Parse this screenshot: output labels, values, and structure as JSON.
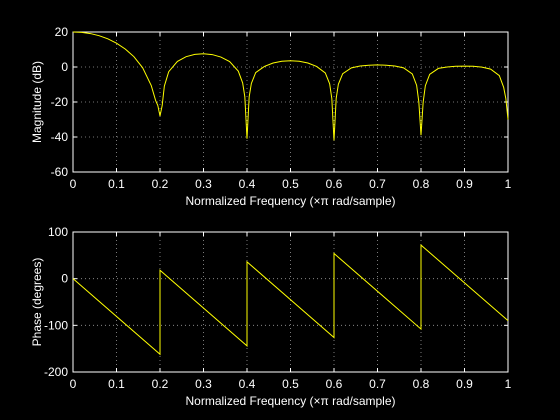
{
  "figure": {
    "background": "#000000",
    "axes_color": "#ffffff",
    "grid_color": "#9a9a9a",
    "line_color": "#ffff00"
  },
  "chart_data": [
    {
      "type": "line",
      "title": "",
      "xlabel": "Normalized Frequency  (×π rad/sample)",
      "ylabel": "Magnitude (dB)",
      "xlim": [
        0,
        1
      ],
      "ylim": [
        -60,
        20
      ],
      "xticks": [
        "0",
        "0.1",
        "0.2",
        "0.3",
        "0.4",
        "0.5",
        "0.6",
        "0.7",
        "0.8",
        "0.9",
        "1"
      ],
      "yticks": [
        "20",
        "0",
        "-20",
        "-40",
        "-60"
      ],
      "grid": true,
      "series": [
        {
          "color": "#ffff00",
          "x": [
            0,
            0.02,
            0.04,
            0.06,
            0.08,
            0.1,
            0.12,
            0.14,
            0.16,
            0.18,
            0.19,
            0.195,
            0.2,
            0.205,
            0.21,
            0.22,
            0.24,
            0.26,
            0.28,
            0.3,
            0.32,
            0.34,
            0.36,
            0.38,
            0.39,
            0.395,
            0.4,
            0.405,
            0.41,
            0.42,
            0.44,
            0.46,
            0.48,
            0.5,
            0.52,
            0.54,
            0.56,
            0.58,
            0.59,
            0.595,
            0.6,
            0.605,
            0.61,
            0.62,
            0.64,
            0.66,
            0.68,
            0.7,
            0.72,
            0.74,
            0.76,
            0.78,
            0.79,
            0.795,
            0.8,
            0.805,
            0.81,
            0.82,
            0.84,
            0.86,
            0.88,
            0.9,
            0.92,
            0.94,
            0.96,
            0.98,
            0.99,
            0.995,
            1.0
          ],
          "y": [
            20,
            19.8,
            19.1,
            17.9,
            16.1,
            13.6,
            10.3,
            5.9,
            -0.4,
            -10.7,
            -19.2,
            -22,
            -28,
            -22,
            -10.9,
            -2.7,
            3.2,
            5.9,
            7.2,
            7.6,
            7.1,
            5.7,
            3.1,
            -2.4,
            -9.1,
            -17,
            -41,
            -17,
            -9.4,
            -3.2,
            0.3,
            2.3,
            3.3,
            3.6,
            3.3,
            2.3,
            0.3,
            -3.4,
            -9.6,
            -18,
            -42,
            -18,
            -9.9,
            -3.8,
            -0.5,
            0.6,
            1.0,
            1.2,
            1.0,
            0.6,
            -0.5,
            -4.0,
            -10.5,
            -20,
            -39,
            -20,
            -10.7,
            -4.2,
            -0.8,
            0.0,
            0.4,
            0.5,
            0.4,
            -0.1,
            -1.2,
            -4.9,
            -11.6,
            -18,
            -30
          ]
        }
      ]
    },
    {
      "type": "line",
      "title": "",
      "xlabel": "Normalized Frequency  (×π rad/sample)",
      "ylabel": "Phase (degrees)",
      "xlim": [
        0,
        1
      ],
      "ylim": [
        -200,
        100
      ],
      "xticks": [
        "0",
        "0.1",
        "0.2",
        "0.3",
        "0.4",
        "0.5",
        "0.6",
        "0.7",
        "0.8",
        "0.9",
        "1"
      ],
      "yticks": [
        "100",
        "0",
        "-100",
        "-200"
      ],
      "grid": true,
      "series": [
        {
          "color": "#ffff00",
          "x": [
            0,
            0.2,
            0.2,
            0.4,
            0.4,
            0.6,
            0.6,
            0.8,
            0.8,
            1.0
          ],
          "y": [
            0,
            -162,
            18,
            -144,
            36,
            -126,
            54,
            -108,
            72,
            -90
          ]
        }
      ]
    }
  ]
}
